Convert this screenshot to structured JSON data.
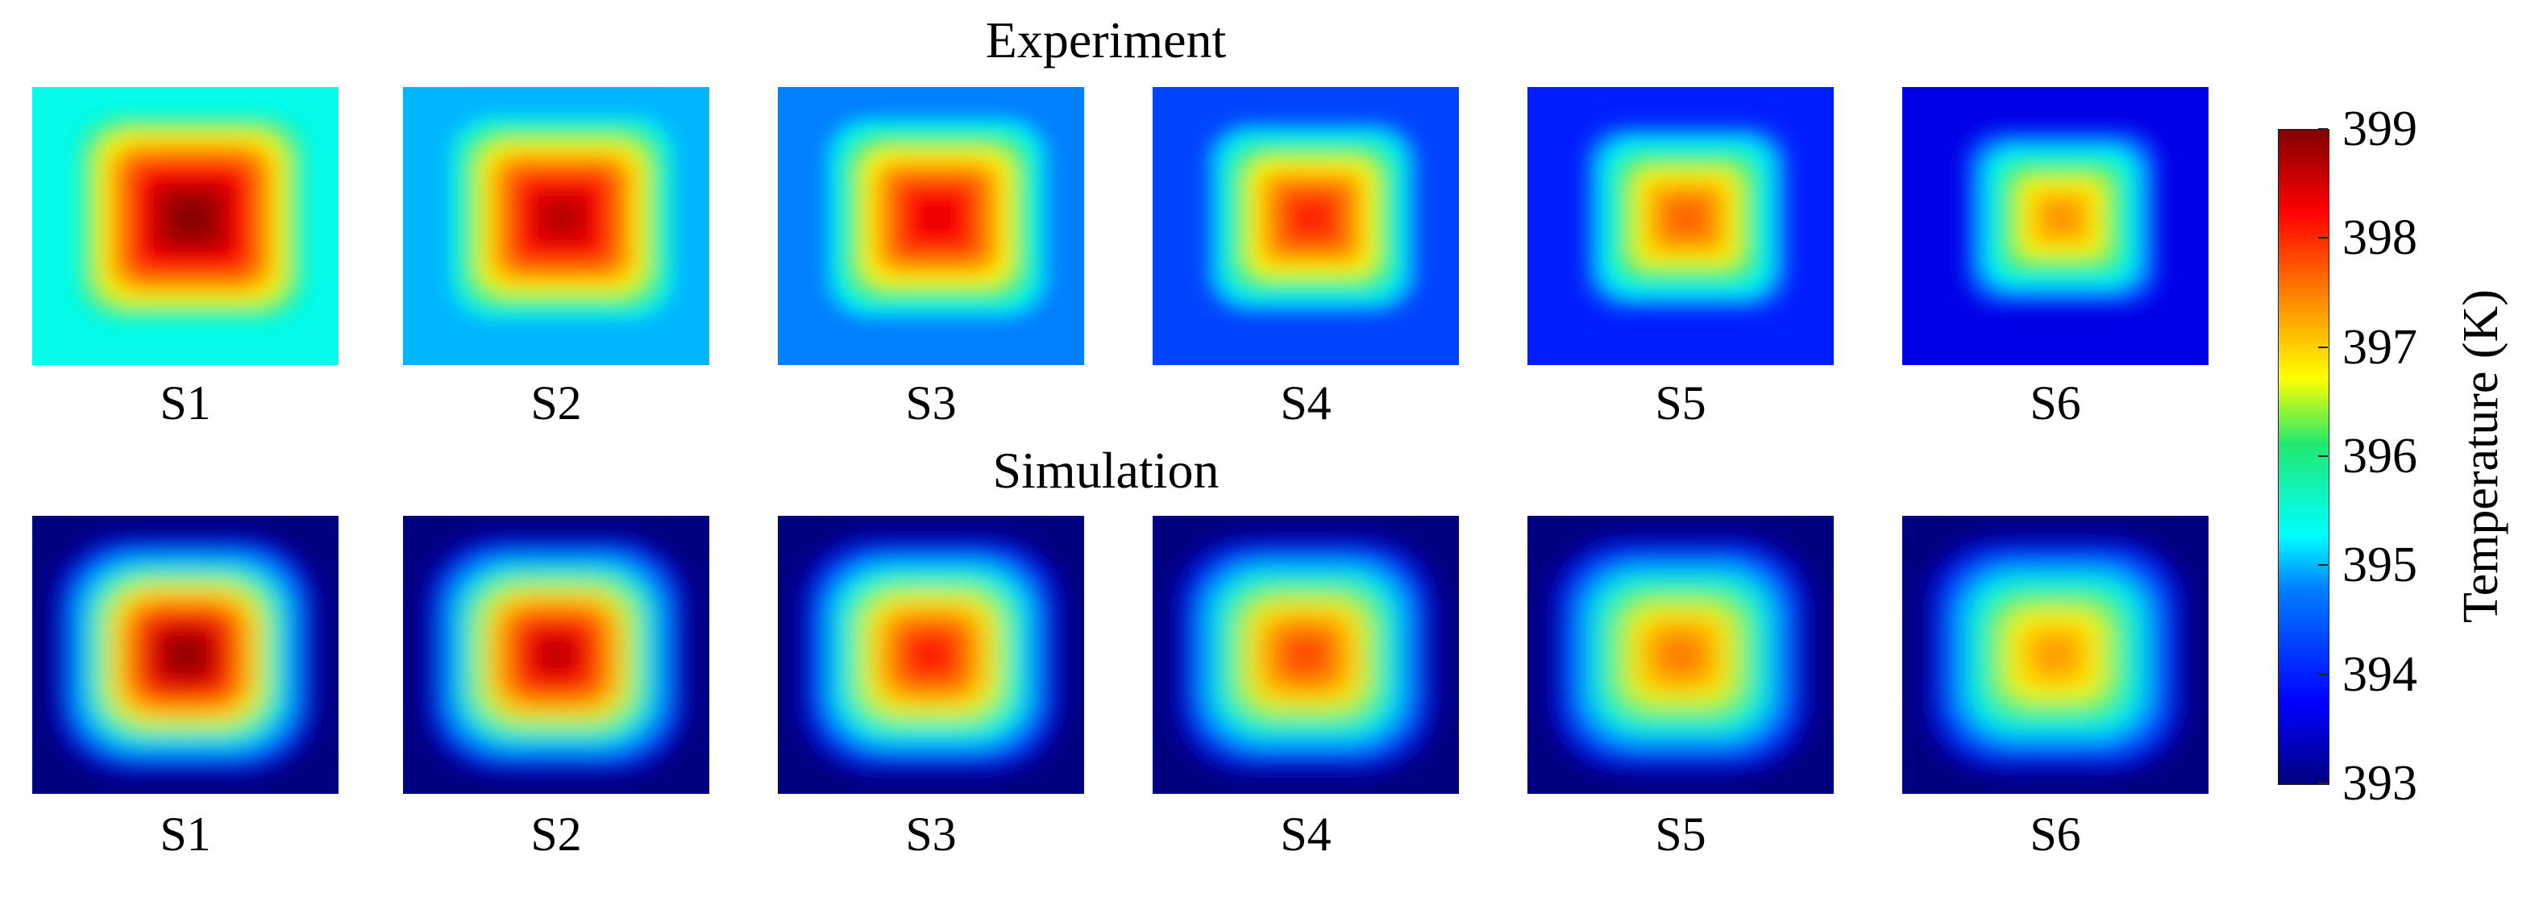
{
  "chart_data": {
    "type": "heatmap",
    "rows": [
      {
        "title": "Experiment",
        "panels": [
          {
            "label": "S1",
            "max_temp": 399.0,
            "edge_temp": 395.4
          },
          {
            "label": "S2",
            "max_temp": 398.7,
            "edge_temp": 395.0
          },
          {
            "label": "S3",
            "max_temp": 398.4,
            "edge_temp": 394.8
          },
          {
            "label": "S4",
            "max_temp": 398.1,
            "edge_temp": 394.3
          },
          {
            "label": "S5",
            "max_temp": 397.7,
            "edge_temp": 394.0
          },
          {
            "label": "S6",
            "max_temp": 397.4,
            "edge_temp": 393.6
          }
        ]
      },
      {
        "title": "Simulation",
        "panels": [
          {
            "label": "S1",
            "max_temp": 399.0,
            "edge_temp": 393.0
          },
          {
            "label": "S2",
            "max_temp": 398.7,
            "edge_temp": 393.0
          },
          {
            "label": "S3",
            "max_temp": 398.2,
            "edge_temp": 393.0
          },
          {
            "label": "S4",
            "max_temp": 397.9,
            "edge_temp": 393.0
          },
          {
            "label": "S5",
            "max_temp": 397.6,
            "edge_temp": 393.0
          },
          {
            "label": "S6",
            "max_temp": 397.4,
            "edge_temp": 393.0
          }
        ]
      }
    ],
    "colorbar": {
      "title": "Temperature (K)",
      "min": 393,
      "max": 399,
      "ticks": [
        "393",
        "394",
        "395",
        "396",
        "397",
        "398",
        "399"
      ],
      "colors": [
        "#000080",
        "#0000ff",
        "#0080ff",
        "#00ffff",
        "#22e870",
        "#ffff00",
        "#ff8000",
        "#ff0000",
        "#800000"
      ]
    }
  }
}
